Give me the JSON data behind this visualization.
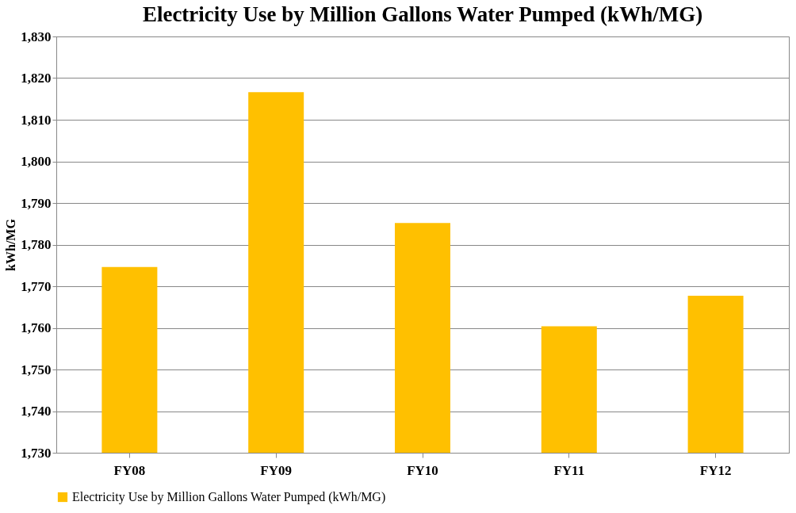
{
  "chart_data": {
    "type": "bar",
    "title": "Electricity Use by Million Gallons Water Pumped (kWh/MG)",
    "ylabel": "kWh/MG",
    "categories": [
      "FY08",
      "FY09",
      "FY10",
      "FY11",
      "FY12"
    ],
    "series": [
      {
        "name": "Electricity Use by Million Gallons Water Pumped (kWh/MG)",
        "color": "#ffc000",
        "values": [
          1774.6,
          1816.6,
          1785.2,
          1760.4,
          1767.7
        ]
      }
    ],
    "ylim": [
      1730,
      1830
    ],
    "yticks": [
      {
        "value": 1730,
        "label": "1,730"
      },
      {
        "value": 1740,
        "label": "1,740"
      },
      {
        "value": 1750,
        "label": "1,750"
      },
      {
        "value": 1760,
        "label": "1,760"
      },
      {
        "value": 1770,
        "label": "1,770"
      },
      {
        "value": 1780,
        "label": "1,780"
      },
      {
        "value": 1790,
        "label": "1,790"
      },
      {
        "value": 1800,
        "label": "1,800"
      },
      {
        "value": 1810,
        "label": "1,810"
      },
      {
        "value": 1820,
        "label": "1,820"
      },
      {
        "value": 1830,
        "label": "1,830"
      }
    ],
    "grid": "y",
    "legend": "bottom"
  }
}
